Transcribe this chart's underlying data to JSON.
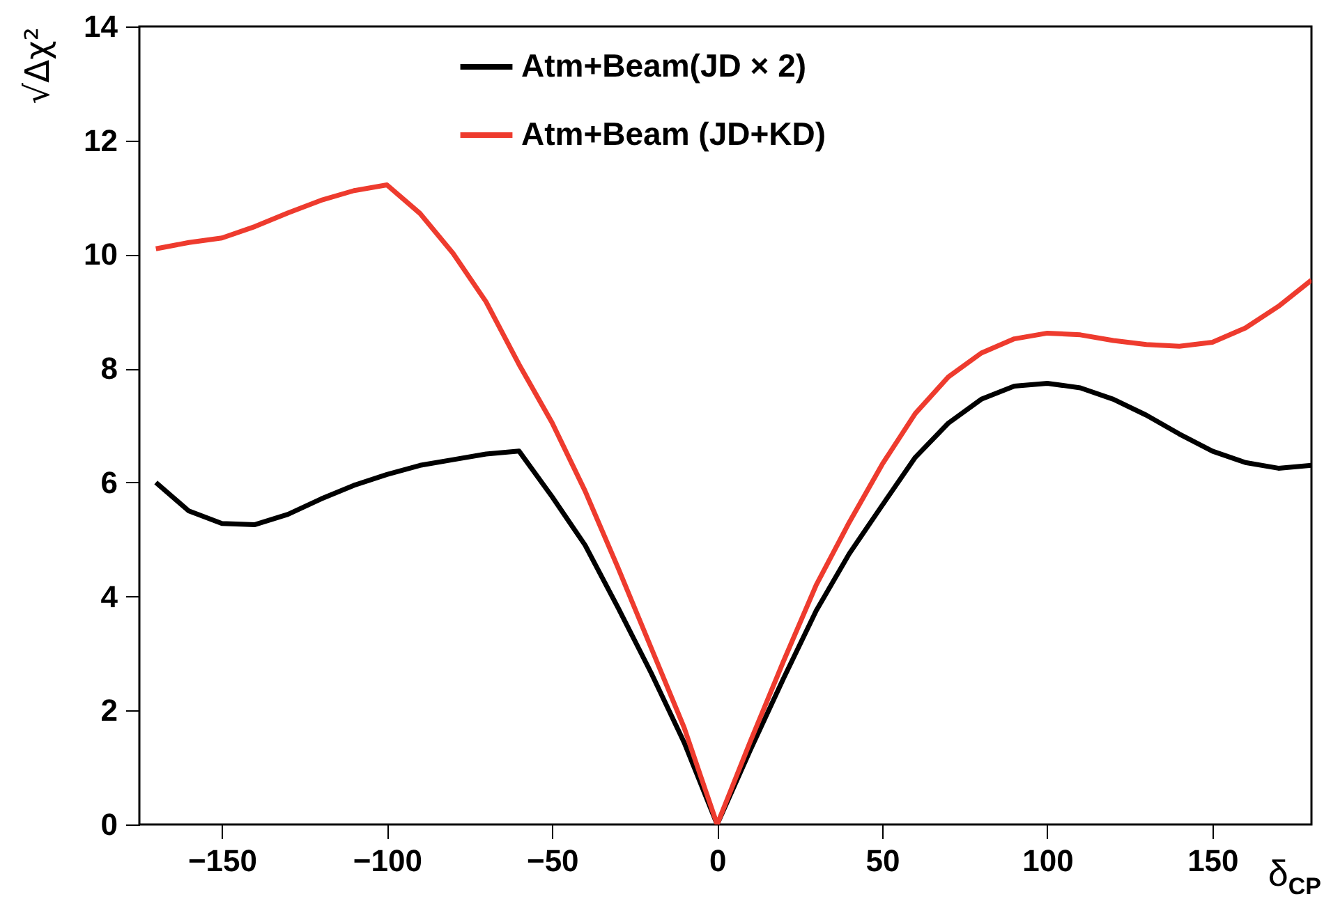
{
  "chart_data": {
    "type": "line",
    "xlabel": "δ$_{CP}$",
    "ylabel": "√Δχ²",
    "x": [
      -170,
      -160,
      -150,
      -140,
      -130,
      -120,
      -110,
      -100,
      -90,
      -80,
      -70,
      -60,
      -50,
      -40,
      -30,
      -20,
      -10,
      0,
      10,
      20,
      30,
      40,
      50,
      60,
      70,
      80,
      90,
      100,
      110,
      120,
      130,
      140,
      150,
      160,
      170,
      180
    ],
    "series": [
      {
        "name": "Atm+Beam(JD × 2)",
        "color": "#000000",
        "values": [
          6.0,
          5.5,
          5.28,
          5.26,
          5.44,
          5.71,
          5.95,
          6.14,
          6.3,
          6.4,
          6.5,
          6.55,
          5.75,
          4.9,
          3.8,
          2.66,
          1.44,
          0,
          1.3,
          2.55,
          3.75,
          4.75,
          5.6,
          6.44,
          7.04,
          7.46,
          7.69,
          7.74,
          7.66,
          7.46,
          7.18,
          6.85,
          6.55,
          6.35,
          6.25,
          6.3
        ]
      },
      {
        "name": "Atm+Beam (JD+KD)",
        "color": "#ee3b2e",
        "values": [
          10.1,
          10.21,
          10.29,
          10.49,
          10.73,
          10.95,
          11.12,
          11.22,
          10.72,
          10.02,
          9.17,
          8.07,
          7.05,
          5.85,
          4.5,
          3.1,
          1.7,
          0,
          1.45,
          2.85,
          4.2,
          5.3,
          6.32,
          7.21,
          7.85,
          8.27,
          8.52,
          8.62,
          8.59,
          8.49,
          8.42,
          8.39,
          8.46,
          8.71,
          9.09,
          9.55
        ]
      }
    ],
    "xlim": [
      -175,
      180
    ],
    "xticks": [
      -150,
      -100,
      -50,
      0,
      50,
      100,
      150
    ],
    "ylim": [
      0,
      14
    ],
    "yticks": [
      0,
      2,
      4,
      6,
      8,
      10,
      12,
      14
    ],
    "legend": "top",
    "grid": false,
    "line_style": "solid"
  }
}
